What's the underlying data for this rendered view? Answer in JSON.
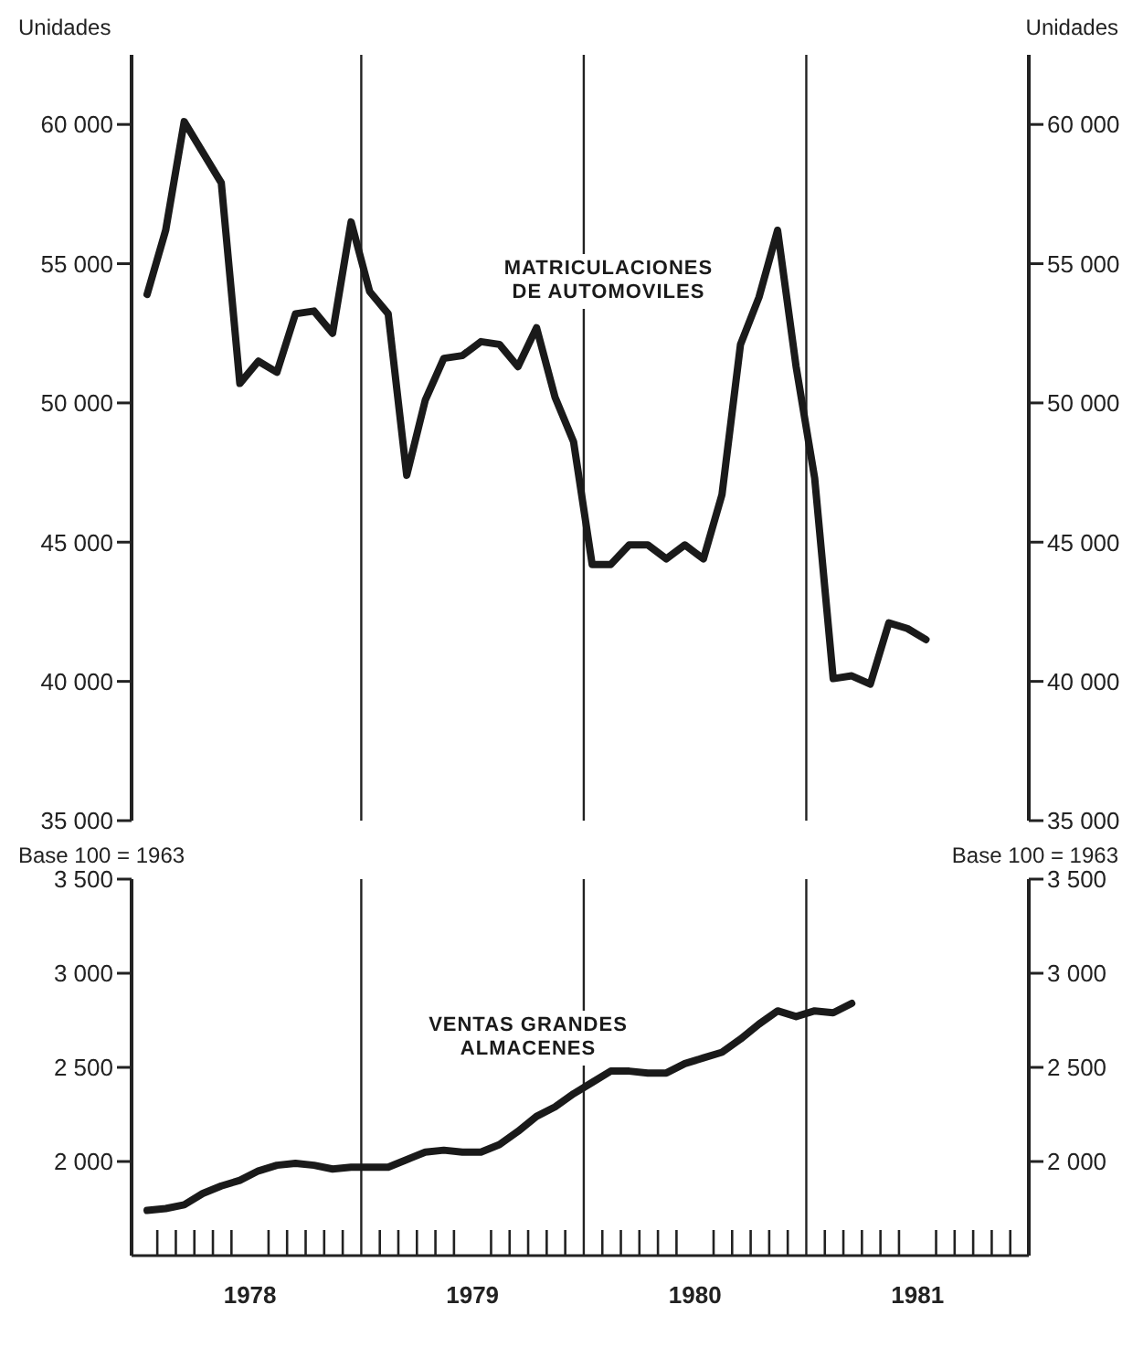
{
  "chart_data": [
    {
      "type": "line",
      "ylabel": "Unidades",
      "y2label": "Unidades",
      "x": [
        "1978-01-15",
        "1978-02-15",
        "1978-03-15",
        "1978-04-15",
        "1978-05-15",
        "1978-06-15",
        "1978-07-15",
        "1978-08-15",
        "1978-09-15",
        "1978-10-15",
        "1978-11-15",
        "1978-12-15",
        "1979-01-15",
        "1979-02-15",
        "1979-03-15",
        "1979-04-15",
        "1979-05-15",
        "1979-06-15",
        "1979-07-15",
        "1979-08-15",
        "1979-09-15",
        "1979-10-15",
        "1979-11-15",
        "1979-12-15",
        "1980-01-15",
        "1980-02-15",
        "1980-03-15",
        "1980-04-15",
        "1980-05-15",
        "1980-06-15",
        "1980-07-15",
        "1980-08-15",
        "1980-09-15",
        "1980-10-15",
        "1980-11-15",
        "1980-12-15",
        "1981-01-15",
        "1981-02-15",
        "1981-03-15",
        "1981-04-15",
        "1981-05-15",
        "1981-06-15",
        "1981-07-15"
      ],
      "series": [
        {
          "name": "MATRICULACIONES DE AUTOMOVILES",
          "color": "#1a1a1a",
          "values": [
            53900,
            56200,
            60100,
            59000,
            57900,
            50700,
            51500,
            51100,
            53200,
            53300,
            52500,
            56500,
            54000,
            53200,
            47400,
            50100,
            51600,
            51700,
            52200,
            52100,
            51300,
            52700,
            50200,
            48600,
            44200,
            44200,
            44900,
            44900,
            44400,
            44900,
            44400,
            46700,
            52100,
            53800,
            56200,
            51300,
            47300,
            40100,
            40200,
            39900,
            42100,
            41900,
            41500
          ]
        }
      ],
      "xlim": [
        "1977-12-20",
        "1982-01-01"
      ],
      "ylim": [
        35000,
        62500
      ],
      "yticks": [
        {
          "value": 35000,
          "label": "35 000"
        },
        {
          "value": 40000,
          "label": "40 000"
        },
        {
          "value": 45000,
          "label": "45 000"
        },
        {
          "value": 50000,
          "label": "50 000"
        },
        {
          "value": 55000,
          "label": "55 000"
        },
        {
          "value": 60000,
          "label": "60 000"
        }
      ],
      "y2lim": [
        35000,
        62500
      ],
      "y2ticks": [
        {
          "value": 35000,
          "label": "35 000"
        },
        {
          "value": 40000,
          "label": "40 000"
        },
        {
          "value": 45000,
          "label": "45 000"
        },
        {
          "value": 50000,
          "label": "50 000"
        },
        {
          "value": 55000,
          "label": "55 000"
        },
        {
          "value": 60000,
          "label": "60 000"
        }
      ],
      "ref_lines": [
        {
          "axis": "x",
          "value": "1979-01-01"
        },
        {
          "axis": "x",
          "value": "1980-01-01"
        },
        {
          "axis": "x",
          "value": "1981-01-01"
        }
      ],
      "tick_labels": "y",
      "marker": "none",
      "line_style": "solid"
    },
    {
      "type": "line",
      "ylabel": "Base 100 = 1963",
      "y2label": "Base 100 = 1963",
      "x": [
        "1978-01-15",
        "1978-02-15",
        "1978-03-15",
        "1978-04-15",
        "1978-05-15",
        "1978-06-15",
        "1978-07-15",
        "1978-08-15",
        "1978-09-15",
        "1978-10-15",
        "1978-11-15",
        "1978-12-15",
        "1979-01-15",
        "1979-02-15",
        "1979-03-15",
        "1979-04-15",
        "1979-05-15",
        "1979-06-15",
        "1979-07-15",
        "1979-08-15",
        "1979-09-15",
        "1979-10-15",
        "1979-11-15",
        "1979-12-15",
        "1980-01-15",
        "1980-02-15",
        "1980-03-15",
        "1980-04-15",
        "1980-05-15",
        "1980-06-15",
        "1980-07-15",
        "1980-08-15",
        "1980-09-15",
        "1980-10-15",
        "1980-11-15",
        "1980-12-15",
        "1981-01-15",
        "1981-02-15",
        "1981-03-15"
      ],
      "series": [
        {
          "name": "VENTAS GRANDES ALMACENES",
          "color": "#1a1a1a",
          "values": [
            1740,
            1750,
            1770,
            1830,
            1870,
            1900,
            1950,
            1980,
            1990,
            1980,
            1960,
            1970,
            1970,
            1970,
            2010,
            2050,
            2060,
            2050,
            2050,
            2090,
            2160,
            2240,
            2290,
            2360,
            2420,
            2480,
            2480,
            2470,
            2470,
            2520,
            2550,
            2580,
            2650,
            2730,
            2800,
            2770,
            2800,
            2790,
            2840
          ]
        }
      ],
      "xlim": [
        "1977-12-20",
        "1982-01-01"
      ],
      "xticks": [
        {
          "value": "1978-02-01",
          "label": null
        },
        {
          "value": "1978-03-01",
          "label": null
        },
        {
          "value": "1978-04-01",
          "label": null
        },
        {
          "value": "1978-05-01",
          "label": null
        },
        {
          "value": "1978-06-01",
          "label": null
        },
        {
          "value": "1978-07-01",
          "label": "1978"
        },
        {
          "value": "1978-08-01",
          "label": null
        },
        {
          "value": "1978-09-01",
          "label": null
        },
        {
          "value": "1978-10-01",
          "label": null
        },
        {
          "value": "1978-11-01",
          "label": null
        },
        {
          "value": "1978-12-01",
          "label": null
        },
        {
          "value": "1979-02-01",
          "label": null
        },
        {
          "value": "1979-03-01",
          "label": null
        },
        {
          "value": "1979-04-01",
          "label": null
        },
        {
          "value": "1979-05-01",
          "label": null
        },
        {
          "value": "1979-06-01",
          "label": null
        },
        {
          "value": "1979-07-01",
          "label": "1979"
        },
        {
          "value": "1979-08-01",
          "label": null
        },
        {
          "value": "1979-09-01",
          "label": null
        },
        {
          "value": "1979-10-01",
          "label": null
        },
        {
          "value": "1979-11-01",
          "label": null
        },
        {
          "value": "1979-12-01",
          "label": null
        },
        {
          "value": "1980-02-01",
          "label": null
        },
        {
          "value": "1980-03-01",
          "label": null
        },
        {
          "value": "1980-04-01",
          "label": null
        },
        {
          "value": "1980-05-01",
          "label": null
        },
        {
          "value": "1980-06-01",
          "label": null
        },
        {
          "value": "1980-07-01",
          "label": "1980"
        },
        {
          "value": "1980-08-01",
          "label": null
        },
        {
          "value": "1980-09-01",
          "label": null
        },
        {
          "value": "1980-10-01",
          "label": null
        },
        {
          "value": "1980-11-01",
          "label": null
        },
        {
          "value": "1980-12-01",
          "label": null
        },
        {
          "value": "1981-02-01",
          "label": null
        },
        {
          "value": "1981-03-01",
          "label": null
        },
        {
          "value": "1981-04-01",
          "label": null
        },
        {
          "value": "1981-05-01",
          "label": null
        },
        {
          "value": "1981-06-01",
          "label": null
        },
        {
          "value": "1981-07-01",
          "label": "1981"
        },
        {
          "value": "1981-08-01",
          "label": null
        },
        {
          "value": "1981-09-01",
          "label": null
        },
        {
          "value": "1981-10-01",
          "label": null
        },
        {
          "value": "1981-11-01",
          "label": null
        },
        {
          "value": "1981-12-01",
          "label": null
        }
      ],
      "ylim": [
        1500,
        3500
      ],
      "yticks": [
        {
          "value": 2000,
          "label": "2 000"
        },
        {
          "value": 2500,
          "label": "2 500"
        },
        {
          "value": 3000,
          "label": "3 000"
        },
        {
          "value": 3500,
          "label": "3 500"
        }
      ],
      "y2lim": [
        1500,
        3500
      ],
      "y2ticks": [
        {
          "value": 2000,
          "label": "2 000"
        },
        {
          "value": 2500,
          "label": "2 500"
        },
        {
          "value": 3000,
          "label": "3 000"
        },
        {
          "value": 3500,
          "label": "3 500"
        }
      ],
      "ref_lines": [
        {
          "axis": "x",
          "value": "1979-01-01"
        },
        {
          "axis": "x",
          "value": "1980-01-01"
        },
        {
          "axis": "x",
          "value": "1981-01-01"
        }
      ],
      "marker": "none",
      "line_style": "solid"
    }
  ]
}
